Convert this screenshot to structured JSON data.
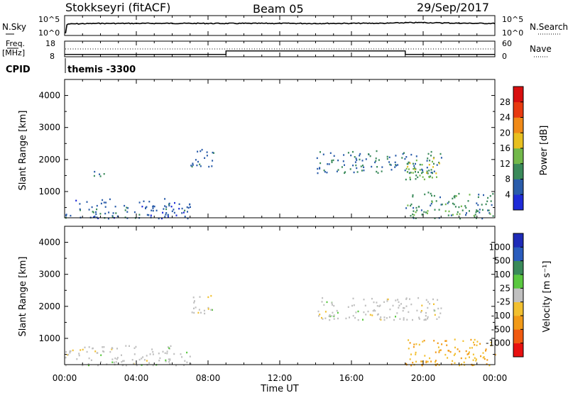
{
  "header": {
    "station": "Stokkseyri (fitACF)",
    "beam": "Beam 05",
    "date": "29/Sep/2017"
  },
  "noise_panel": {
    "left_label": "N.Sky",
    "right_label": "N.Search",
    "left_ticks": [
      "10^5",
      "10^0"
    ],
    "right_ticks": [
      "10^5",
      "10^0"
    ]
  },
  "freq_panel": {
    "left_label_1": "Freq.",
    "left_label_2": "[MHz]",
    "right_label": "Nave",
    "left_ticks": [
      "18",
      "8"
    ],
    "right_ticks": [
      "60",
      "0"
    ]
  },
  "cpid": {
    "label": "CPID",
    "value": "themis -3300"
  },
  "time_axis": {
    "label": "Time UT",
    "ticks": [
      "00:00",
      "04:00",
      "08:00",
      "12:00",
      "16:00",
      "20:00",
      "00:00"
    ]
  },
  "power_panel": {
    "ylabel": "Slant Range [km]",
    "yticks": [
      "1000",
      "2000",
      "3000",
      "4000"
    ],
    "colorbar_label": "Power [dB]",
    "colorbar_ticks": [
      "4",
      "8",
      "12",
      "16",
      "20",
      "24",
      "28"
    ],
    "colors": [
      "#1e2bd8",
      "#2a5caa",
      "#3a8a5a",
      "#72b84a",
      "#e8c020",
      "#f08a18",
      "#e83a10",
      "#d80f0f"
    ]
  },
  "velocity_panel": {
    "ylabel": "Slant Range [km]",
    "yticks": [
      "1000",
      "2000",
      "3000",
      "4000"
    ],
    "colorbar_label": "Velocity [m s⁻¹]",
    "colorbar_ticks": [
      "-1000",
      "-500",
      "-100",
      "-25",
      "25",
      "100",
      "500",
      "1000"
    ],
    "colors": [
      "#e81010",
      "#f05a10",
      "#f29a18",
      "#f2c030",
      "#c0c0c0",
      "#5ac840",
      "#3a8a5a",
      "#2a5cbd",
      "#1e2bb8"
    ]
  },
  "chart_data": [
    {
      "type": "line",
      "title": "Stokkseyri (fitACF) Beam 05 29/Sep/2017",
      "xlabel": "Time UT",
      "x_ticks": [
        "00:00",
        "04:00",
        "08:00",
        "12:00",
        "16:00",
        "20:00",
        "00:00"
      ],
      "ylabel": "N.Sky / N.Search",
      "series": [
        {
          "name": "N.Sky",
          "x_hours": [
            0.05,
            0.2,
            2,
            4,
            6,
            8,
            10,
            12,
            14,
            16,
            18,
            19,
            20,
            21,
            22,
            23,
            24
          ],
          "values": [
            1,
            1000,
            1500,
            1500,
            1600,
            1500,
            1500,
            1550,
            1500,
            1600,
            1700,
            2500,
            2800,
            2200,
            1800,
            1600,
            1500
          ]
        }
      ]
    },
    {
      "type": "line",
      "xlabel": "Time UT",
      "ylabel": "Freq. [MHz]",
      "ylim": [
        8,
        18
      ],
      "series": [
        {
          "name": "Freq.",
          "x_hours": [
            0,
            9,
            9,
            19,
            19,
            24
          ],
          "values": [
            9.2,
            9.2,
            11.8,
            11.8,
            9.2,
            9.2
          ]
        }
      ]
    },
    {
      "type": "heatmap",
      "xlabel": "Time UT",
      "ylabel": "Slant Range [km]",
      "ylim": [
        180,
        4500
      ],
      "colorbar": "Power [dB]",
      "clim": [
        0,
        30
      ],
      "features": [
        {
          "x_hours": [
            0,
            7
          ],
          "range_km": [
            180,
            800
          ],
          "value": 6
        },
        {
          "x_hours": [
            1.5,
            2.5
          ],
          "range_km": [
            1500,
            1700
          ],
          "value": 8
        },
        {
          "x_hours": [
            7,
            8.3
          ],
          "range_km": [
            1800,
            2400
          ],
          "value": 7
        },
        {
          "x_hours": [
            14,
            21
          ],
          "range_km": [
            1600,
            2300
          ],
          "value": 8
        },
        {
          "x_hours": [
            19,
            21
          ],
          "range_km": [
            1400,
            2100
          ],
          "value": 14
        },
        {
          "x_hours": [
            19,
            24
          ],
          "range_km": [
            180,
            1000
          ],
          "value": 10
        }
      ]
    },
    {
      "type": "heatmap",
      "xlabel": "Time UT",
      "ylabel": "Slant Range [km]",
      "ylim": [
        180,
        4500
      ],
      "colorbar": "Velocity [m s-1]",
      "clim": [
        -1000,
        1000
      ],
      "features": [
        {
          "x_hours": [
            0,
            7
          ],
          "range_km": [
            180,
            800
          ],
          "value": 0
        },
        {
          "x_hours": [
            7,
            8.3
          ],
          "range_km": [
            1800,
            2400
          ],
          "value": 0
        },
        {
          "x_hours": [
            14,
            21
          ],
          "range_km": [
            1600,
            2300
          ],
          "value": 0
        },
        {
          "x_hours": [
            19,
            24
          ],
          "range_km": [
            180,
            1000
          ],
          "value": -100
        }
      ]
    }
  ]
}
